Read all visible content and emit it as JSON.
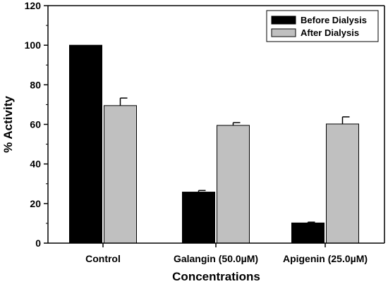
{
  "chart_data": {
    "type": "bar",
    "title": "",
    "xlabel": "Concentrations",
    "ylabel": "% Activity",
    "ylim": [
      0,
      120
    ],
    "yticks": [
      0,
      20,
      40,
      60,
      80,
      100,
      120
    ],
    "categories": [
      "Control",
      "Galangin (50.0µM)",
      "Apigenin (25.0µM)"
    ],
    "series": [
      {
        "name": "Before Dialysis",
        "color": "#000000",
        "values": [
          100,
          25.8,
          10.2
        ],
        "errors": [
          0,
          0.8,
          0.4
        ]
      },
      {
        "name": "After Dialysis",
        "color": "#c0c0c0",
        "values": [
          69.5,
          59.5,
          60.2
        ],
        "errors": [
          3.8,
          1.4,
          3.6
        ]
      }
    ],
    "legend_position": "top-right",
    "grid": false,
    "error_bars": true
  }
}
